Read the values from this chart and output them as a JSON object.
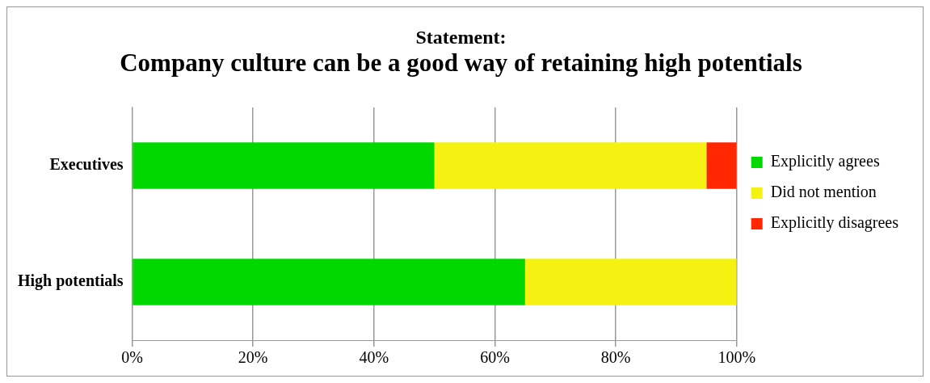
{
  "chart_data": {
    "type": "bar",
    "orientation": "horizontal",
    "stacked": true,
    "title": "Statement:",
    "subtitle": "Company culture can be a good way of retaining high potentials",
    "categories": [
      "Executives",
      "High potentials"
    ],
    "series": [
      {
        "name": "Explicitly agrees",
        "color": "#00d800",
        "values": [
          50,
          65
        ]
      },
      {
        "name": "Did not mention",
        "color": "#f5f212",
        "values": [
          45,
          35
        ]
      },
      {
        "name": "Explicitly disagrees",
        "color": "#ff2600",
        "values": [
          5,
          0
        ]
      }
    ],
    "xlim": [
      0,
      100
    ],
    "xticks": [
      {
        "value": 0,
        "label": "0%"
      },
      {
        "value": 20,
        "label": "20%"
      },
      {
        "value": 40,
        "label": "40%"
      },
      {
        "value": 60,
        "label": "60%"
      },
      {
        "value": 80,
        "label": "80%"
      },
      {
        "value": 100,
        "label": "100%"
      }
    ],
    "grid": "x",
    "legend": "right"
  }
}
